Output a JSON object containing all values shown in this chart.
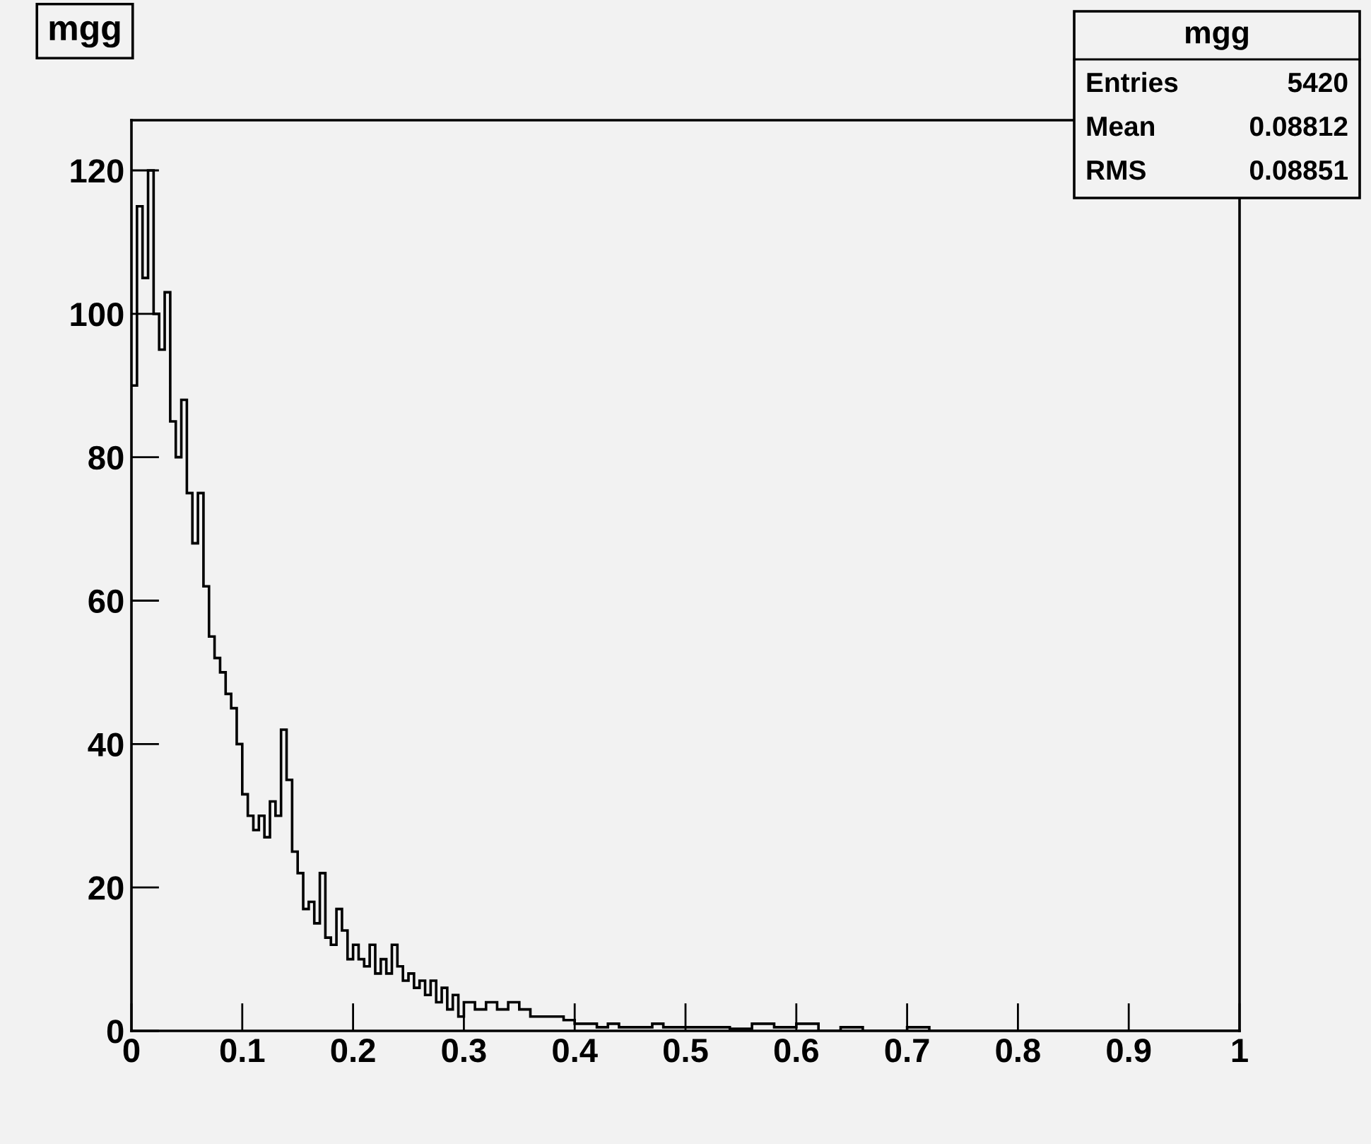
{
  "chart_data": {
    "type": "histogram",
    "title": "mgg",
    "bins": [
      0,
      0.005,
      0.01,
      0.015,
      0.02,
      0.025,
      0.03,
      0.035,
      0.04,
      0.045,
      0.05,
      0.055,
      0.06,
      0.065,
      0.07,
      0.075,
      0.08,
      0.085,
      0.09,
      0.095,
      0.1,
      0.105,
      0.11,
      0.115,
      0.12,
      0.125,
      0.13,
      0.135,
      0.14,
      0.145,
      0.15,
      0.155,
      0.16,
      0.165,
      0.17,
      0.175,
      0.18,
      0.185,
      0.19,
      0.195,
      0.2,
      0.205,
      0.21,
      0.215,
      0.22,
      0.225,
      0.23,
      0.235,
      0.24,
      0.245,
      0.25,
      0.255,
      0.26,
      0.265,
      0.27,
      0.275,
      0.28,
      0.285,
      0.29,
      0.295,
      0.3,
      0.31,
      0.32,
      0.33,
      0.34,
      0.35,
      0.36,
      0.37,
      0.38,
      0.39,
      0.4,
      0.41,
      0.42,
      0.43,
      0.44,
      0.45,
      0.46,
      0.47,
      0.48,
      0.49,
      0.5,
      0.52,
      0.54,
      0.56,
      0.58,
      0.6,
      0.62,
      0.64,
      0.66,
      0.68,
      0.7,
      0.72,
      0.74,
      0.76,
      0.78,
      0.8,
      0.82,
      0.84,
      0.86,
      0.88,
      0.9,
      0.92,
      0.94,
      0.96,
      0.98,
      1.0
    ],
    "values": [
      90,
      115,
      105,
      120,
      100,
      95,
      103,
      85,
      80,
      88,
      75,
      68,
      75,
      62,
      55,
      52,
      50,
      47,
      45,
      40,
      33,
      30,
      28,
      30,
      27,
      32,
      30,
      42,
      35,
      25,
      22,
      17,
      18,
      15,
      22,
      13,
      12,
      17,
      14,
      10,
      12,
      10,
      9,
      12,
      8,
      10,
      8,
      12,
      9,
      7,
      8,
      6,
      7,
      5,
      7,
      4,
      6,
      3,
      5,
      2,
      4,
      3,
      4,
      3,
      4,
      3,
      2,
      2,
      2,
      1.5,
      1,
      1,
      0.5,
      1,
      0.5,
      0.5,
      0.5,
      1,
      0.5,
      0.5,
      0.5,
      0.5,
      0.3,
      1,
      0.5,
      1,
      0,
      0.5,
      0,
      0,
      0.5,
      0,
      0,
      0,
      0,
      0,
      0,
      0,
      0,
      0,
      0,
      0,
      0,
      0,
      0
    ],
    "color": "#000000",
    "xlim": [
      0,
      1
    ],
    "xticks": [
      0,
      0.1,
      0.2,
      0.3,
      0.4,
      0.5,
      0.6,
      0.7,
      0.8,
      0.9,
      1
    ],
    "ylim": [
      0,
      127
    ],
    "yticks": [
      0,
      20,
      40,
      60,
      80,
      100,
      120
    ],
    "grid": false,
    "annotations": [
      "mgg",
      "Entries",
      "5420",
      "Mean",
      "0.08812",
      "RMS",
      "0.08851"
    ]
  }
}
